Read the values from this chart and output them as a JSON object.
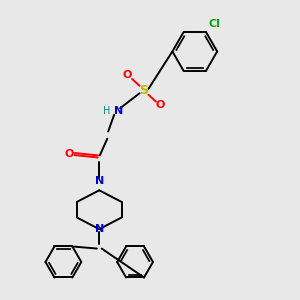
{
  "background_color": "#e8e8e8",
  "bond_color": "#000000",
  "N_color": "#0000cc",
  "O_color": "#ff0000",
  "S_color": "#bbbb00",
  "Cl_color": "#00aa00",
  "H_color": "#008888",
  "font_size": 8,
  "figsize": [
    3.0,
    3.0
  ],
  "dpi": 100,
  "xlim": [
    0,
    10
  ],
  "ylim": [
    0,
    10
  ]
}
